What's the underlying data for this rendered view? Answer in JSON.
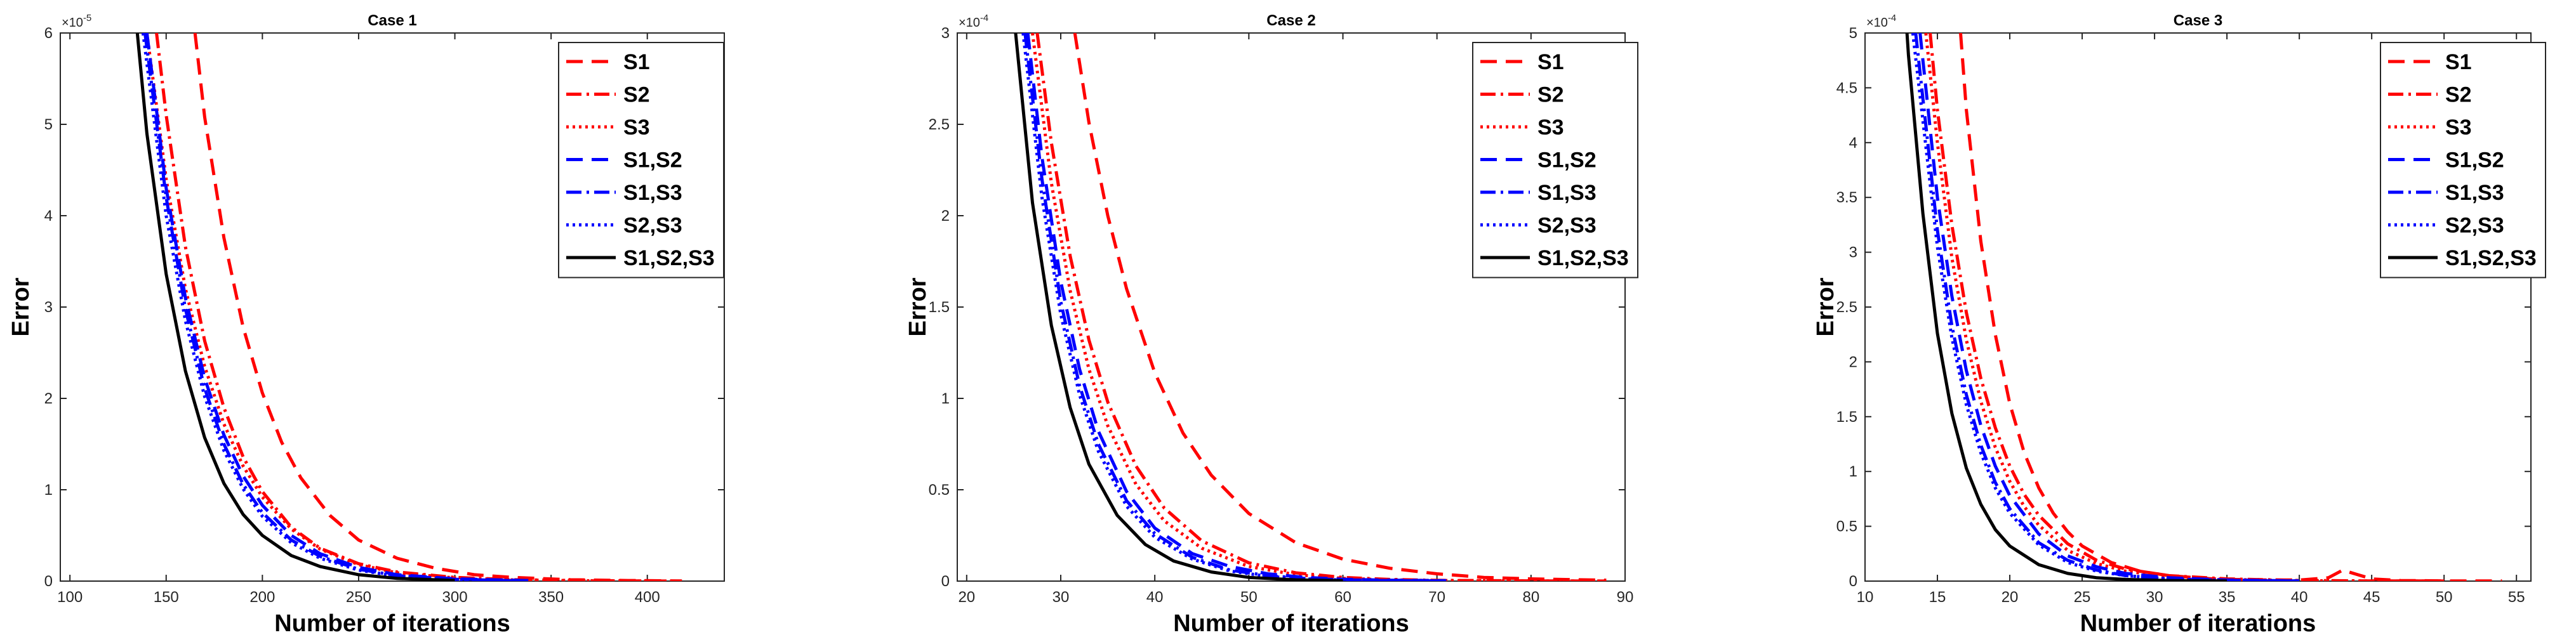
{
  "figure": {
    "styles": {
      "S1": {
        "color": "#ff0000",
        "dash": "26,14"
      },
      "S2": {
        "color": "#ff0000",
        "dash": "24,8,4,8"
      },
      "S3": {
        "color": "#ff0000",
        "dash": "4,6"
      },
      "S1,S2": {
        "color": "#0000ff",
        "dash": "26,14"
      },
      "S1,S3": {
        "color": "#0000ff",
        "dash": "24,8,4,8"
      },
      "S2,S3": {
        "color": "#0000ff",
        "dash": "4,6"
      },
      "S1,S2,S3": {
        "color": "#000000",
        "dash": ""
      }
    }
  },
  "chart_data": [
    {
      "type": "line",
      "title": "Case 1",
      "xlabel": "Number of iterations",
      "ylabel": "Error",
      "xlim": [
        95,
        440
      ],
      "ylim": [
        0,
        6
      ],
      "xticks": [
        100,
        150,
        200,
        250,
        300,
        350,
        400
      ],
      "yticks": [
        0,
        1,
        2,
        3,
        4,
        5,
        6
      ],
      "multiplier": "×10",
      "exponent": "-5",
      "legend": [
        "S1",
        "S2",
        "S3",
        "S1,S2",
        "S1,S3",
        "S2,S3",
        "S1,S2,S3"
      ],
      "series": [
        {
          "name": "S1",
          "x": [
            165,
            170,
            180,
            190,
            200,
            210,
            220,
            235,
            250,
            270,
            290,
            310,
            330,
            360,
            390,
            418
          ],
          "y": [
            6.0,
            5.08,
            3.76,
            2.78,
            2.06,
            1.52,
            1.13,
            0.72,
            0.45,
            0.25,
            0.14,
            0.07,
            0.04,
            0.015,
            0.006,
            0.002
          ]
        },
        {
          "name": "S2",
          "x": [
            145,
            150,
            160,
            170,
            180,
            190,
            200,
            215,
            230,
            250,
            270,
            300,
            330,
            370,
            410
          ],
          "y": [
            6.0,
            5.1,
            3.66,
            2.63,
            1.9,
            1.36,
            0.98,
            0.59,
            0.36,
            0.19,
            0.1,
            0.04,
            0.015,
            0.004,
            0.001
          ]
        },
        {
          "name": "S3",
          "x": [
            140,
            150,
            160,
            170,
            180,
            190,
            200,
            215,
            230,
            250,
            270,
            300,
            330,
            360,
            400
          ],
          "y": [
            6.0,
            4.4,
            3.2,
            2.35,
            1.72,
            1.26,
            0.92,
            0.57,
            0.35,
            0.18,
            0.09,
            0.035,
            0.013,
            0.005,
            0.001
          ]
        },
        {
          "name": "S1,S2",
          "x": [
            140,
            150,
            160,
            170,
            180,
            190,
            200,
            215,
            230,
            250,
            270,
            300,
            340
          ],
          "y": [
            6.0,
            4.3,
            3.1,
            2.22,
            1.6,
            1.15,
            0.83,
            0.5,
            0.3,
            0.15,
            0.07,
            0.025,
            0.005
          ]
        },
        {
          "name": "S1,S3",
          "x": [
            139,
            150,
            160,
            170,
            180,
            190,
            200,
            215,
            230,
            250,
            270,
            300,
            330
          ],
          "y": [
            6.0,
            4.2,
            2.98,
            2.11,
            1.5,
            1.06,
            0.75,
            0.45,
            0.27,
            0.13,
            0.06,
            0.02,
            0.005
          ]
        },
        {
          "name": "S2,S3",
          "x": [
            138,
            150,
            160,
            170,
            180,
            190,
            200,
            215,
            230,
            250,
            270,
            300,
            330
          ],
          "y": [
            6.0,
            4.0,
            2.85,
            2.02,
            1.43,
            1.01,
            0.71,
            0.42,
            0.25,
            0.12,
            0.055,
            0.018,
            0.004
          ]
        },
        {
          "name": "S1,S2,S3",
          "x": [
            135,
            140,
            150,
            160,
            170,
            180,
            190,
            200,
            215,
            230,
            250,
            270,
            300
          ],
          "y": [
            6.0,
            4.9,
            3.36,
            2.3,
            1.57,
            1.07,
            0.73,
            0.5,
            0.28,
            0.16,
            0.07,
            0.03,
            0.007
          ]
        }
      ]
    },
    {
      "type": "line",
      "title": "Case 2",
      "xlabel": "Number of iterations",
      "ylabel": "Error",
      "xlim": [
        19,
        90
      ],
      "ylim": [
        0,
        3
      ],
      "xticks": [
        20,
        30,
        40,
        50,
        60,
        70,
        80,
        90
      ],
      "yticks": [
        0,
        0.5,
        1,
        1.5,
        2,
        2.5,
        3
      ],
      "multiplier": "×10",
      "exponent": "-4",
      "legend": [
        "S1",
        "S2",
        "S3",
        "S1,S2",
        "S1,S3",
        "S2,S3",
        "S1,S2,S3"
      ],
      "series": [
        {
          "name": "S1",
          "x": [
            31.5,
            33,
            35,
            37,
            40,
            43,
            46,
            50,
            55,
            60,
            65,
            70,
            75,
            80,
            88
          ],
          "y": [
            3.0,
            2.51,
            2.0,
            1.6,
            1.14,
            0.81,
            0.58,
            0.37,
            0.21,
            0.12,
            0.07,
            0.04,
            0.02,
            0.012,
            0.005
          ]
        },
        {
          "name": "S2",
          "x": [
            27.5,
            29,
            31,
            33,
            35,
            38,
            41,
            45,
            50,
            55,
            60,
            65,
            70,
            80,
            88
          ],
          "y": [
            3.0,
            2.4,
            1.78,
            1.32,
            0.98,
            0.63,
            0.4,
            0.22,
            0.1,
            0.045,
            0.02,
            0.009,
            0.004,
            0.001,
            0.0003
          ]
        },
        {
          "name": "S3",
          "x": [
            27,
            29,
            31,
            33,
            35,
            38,
            41,
            45,
            50,
            55,
            60,
            65,
            70,
            80,
            88
          ],
          "y": [
            3.0,
            2.18,
            1.59,
            1.16,
            0.85,
            0.53,
            0.33,
            0.18,
            0.08,
            0.035,
            0.015,
            0.007,
            0.003,
            0.001,
            0.0002
          ]
        },
        {
          "name": "S1,S2",
          "x": [
            26.5,
            28,
            30,
            32,
            34,
            37,
            40,
            44,
            48,
            52,
            56,
            60,
            65,
            71
          ],
          "y": [
            3.0,
            2.32,
            1.64,
            1.16,
            0.82,
            0.49,
            0.29,
            0.15,
            0.08,
            0.04,
            0.02,
            0.01,
            0.005,
            0.002
          ]
        },
        {
          "name": "S1,S3",
          "x": [
            26.2,
            28,
            30,
            32,
            34,
            37,
            40,
            44,
            48,
            52,
            56,
            60,
            65,
            71
          ],
          "y": [
            3.0,
            2.2,
            1.53,
            1.07,
            0.75,
            0.44,
            0.26,
            0.13,
            0.06,
            0.03,
            0.015,
            0.007,
            0.003,
            0.001
          ]
        },
        {
          "name": "S2,S3",
          "x": [
            26,
            28,
            30,
            32,
            34,
            37,
            40,
            44,
            48,
            52,
            56,
            60,
            65,
            71
          ],
          "y": [
            3.0,
            2.1,
            1.46,
            1.02,
            0.71,
            0.41,
            0.24,
            0.12,
            0.055,
            0.026,
            0.012,
            0.006,
            0.002,
            0.001
          ]
        },
        {
          "name": "S1,S2,S3",
          "x": [
            25.2,
            27,
            29,
            31,
            33,
            36,
            39,
            42,
            46,
            50,
            55,
            60
          ],
          "y": [
            3.0,
            2.07,
            1.4,
            0.95,
            0.64,
            0.36,
            0.2,
            0.11,
            0.05,
            0.02,
            0.007,
            0.002
          ]
        }
      ]
    },
    {
      "type": "line",
      "title": "Case 3",
      "xlabel": "Number of iterations",
      "ylabel": "Error",
      "xlim": [
        10,
        56
      ],
      "ylim": [
        0,
        5
      ],
      "xticks": [
        10,
        15,
        20,
        25,
        30,
        35,
        40,
        45,
        50,
        55
      ],
      "yticks": [
        0,
        0.5,
        1,
        1.5,
        2,
        2.5,
        3,
        3.5,
        4,
        4.5,
        5
      ],
      "multiplier": "×10",
      "exponent": "-4",
      "legend": [
        "S1",
        "S2",
        "S3",
        "S1,S2",
        "S1,S3",
        "S2,S3",
        "S1,S2,S3"
      ],
      "series": [
        {
          "name": "S1",
          "x": [
            16.6,
            17,
            18,
            19,
            20,
            21,
            22,
            23,
            24,
            25,
            27,
            29,
            31,
            34,
            37,
            40,
            42,
            43,
            44,
            45,
            47,
            50,
            53,
            54
          ],
          "y": [
            5.0,
            4.3,
            3.1,
            2.25,
            1.62,
            1.17,
            0.85,
            0.62,
            0.45,
            0.32,
            0.17,
            0.09,
            0.05,
            0.02,
            0.01,
            0.01,
            0.03,
            0.1,
            0.06,
            0.02,
            0.005,
            0.002,
            0.001,
            0.001
          ]
        },
        {
          "name": "S2",
          "x": [
            14.5,
            15,
            16,
            17,
            18,
            19,
            20,
            21,
            22,
            24,
            26,
            28,
            31,
            35,
            40,
            45,
            50
          ],
          "y": [
            5.0,
            4.3,
            3.25,
            2.45,
            1.85,
            1.4,
            1.05,
            0.79,
            0.6,
            0.34,
            0.19,
            0.11,
            0.05,
            0.02,
            0.006,
            0.002,
            0.001
          ]
        },
        {
          "name": "S3",
          "x": [
            14.2,
            15,
            16,
            17,
            18,
            19,
            20,
            21,
            22,
            24,
            26,
            28,
            31,
            35,
            40,
            45,
            50
          ],
          "y": [
            5.0,
            4.0,
            2.95,
            2.2,
            1.64,
            1.22,
            0.91,
            0.68,
            0.51,
            0.28,
            0.16,
            0.09,
            0.04,
            0.015,
            0.004,
            0.001,
            0.0005
          ]
        },
        {
          "name": "S1,S2",
          "x": [
            13.8,
            14,
            15,
            16,
            17,
            18,
            19,
            20,
            22,
            24,
            26,
            28,
            31,
            35,
            40
          ],
          "y": [
            5.0,
            4.75,
            3.5,
            2.6,
            1.92,
            1.42,
            1.05,
            0.78,
            0.43,
            0.23,
            0.13,
            0.07,
            0.03,
            0.01,
            0.002
          ]
        },
        {
          "name": "S1,S3",
          "x": [
            13.5,
            14,
            15,
            16,
            17,
            18,
            19,
            20,
            22,
            24,
            26,
            28,
            31,
            35,
            40
          ],
          "y": [
            5.0,
            4.4,
            3.2,
            2.33,
            1.7,
            1.24,
            0.9,
            0.66,
            0.35,
            0.19,
            0.1,
            0.05,
            0.02,
            0.007,
            0.001
          ]
        },
        {
          "name": "S2,S3",
          "x": [
            13.3,
            14,
            15,
            16,
            17,
            18,
            19,
            20,
            22,
            24,
            26,
            28,
            31,
            35,
            40
          ],
          "y": [
            5.0,
            4.2,
            3.05,
            2.22,
            1.61,
            1.17,
            0.85,
            0.62,
            0.33,
            0.17,
            0.09,
            0.05,
            0.02,
            0.006,
            0.001
          ]
        },
        {
          "name": "S1,S2,S3",
          "x": [
            12.9,
            13,
            14,
            15,
            16,
            17,
            18,
            19,
            20,
            22,
            24,
            26,
            28,
            31,
            35
          ],
          "y": [
            5.0,
            4.8,
            3.35,
            2.26,
            1.53,
            1.03,
            0.7,
            0.47,
            0.32,
            0.15,
            0.07,
            0.03,
            0.015,
            0.005,
            0.001
          ]
        }
      ]
    }
  ]
}
